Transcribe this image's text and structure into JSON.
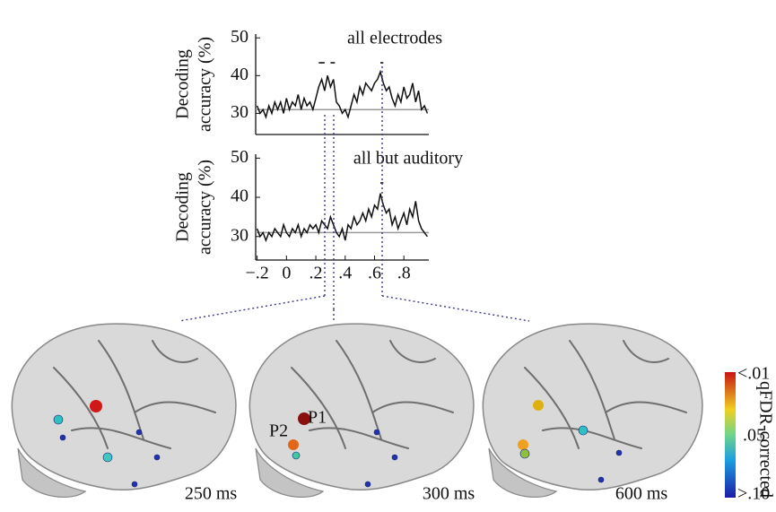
{
  "chart_data": [
    {
      "type": "line",
      "title": "all electrodes",
      "ylabel_lines": [
        "Decoding",
        "accuracy (%)"
      ],
      "x": [
        -0.2,
        -0.18,
        -0.16,
        -0.14,
        -0.12,
        -0.1,
        -0.08,
        -0.06,
        -0.04,
        -0.02,
        0,
        0.02,
        0.04,
        0.06,
        0.08,
        0.1,
        0.12,
        0.14,
        0.16,
        0.18,
        0.2,
        0.22,
        0.24,
        0.26,
        0.28,
        0.3,
        0.32,
        0.34,
        0.36,
        0.38,
        0.4,
        0.42,
        0.44,
        0.46,
        0.48,
        0.5,
        0.52,
        0.54,
        0.56,
        0.58,
        0.6,
        0.62,
        0.64,
        0.66,
        0.68,
        0.7,
        0.72,
        0.74,
        0.76,
        0.78,
        0.8,
        0.82,
        0.84,
        0.86,
        0.88,
        0.9,
        0.92,
        0.94,
        0.96
      ],
      "series": [
        {
          "color": "#111111",
          "values": [
            32,
            30,
            31,
            29,
            32,
            30,
            33,
            31,
            33,
            30,
            34,
            31,
            33,
            32,
            35,
            31,
            34,
            32,
            33,
            31,
            34,
            37,
            39,
            36,
            40,
            37,
            39,
            33,
            32,
            30,
            31,
            29,
            32,
            35,
            33,
            37,
            35,
            38,
            37,
            36,
            38,
            39,
            41,
            38,
            36,
            37,
            34,
            32,
            35,
            33,
            37,
            34,
            35,
            38,
            33,
            36,
            31,
            32,
            30
          ]
        }
      ],
      "reference_line": 31,
      "reference_color": "#9a9a9a",
      "significant_windows": [
        [
          0.22,
          0.26
        ],
        [
          0.3,
          0.33
        ],
        [
          0.64,
          0.66
        ]
      ],
      "xlim": [
        -0.21,
        0.97
      ],
      "ylim": [
        24.4,
        51
      ],
      "yticks": [
        30,
        40,
        50
      ]
    },
    {
      "type": "line",
      "title": "all but auditory",
      "ylabel_lines": [
        "Decoding",
        "accuracy (%)"
      ],
      "x": [
        -0.2,
        -0.18,
        -0.16,
        -0.14,
        -0.12,
        -0.1,
        -0.08,
        -0.06,
        -0.04,
        -0.02,
        0,
        0.02,
        0.04,
        0.06,
        0.08,
        0.1,
        0.12,
        0.14,
        0.16,
        0.18,
        0.2,
        0.22,
        0.24,
        0.26,
        0.28,
        0.3,
        0.32,
        0.34,
        0.36,
        0.38,
        0.4,
        0.42,
        0.44,
        0.46,
        0.48,
        0.5,
        0.52,
        0.54,
        0.56,
        0.58,
        0.6,
        0.62,
        0.64,
        0.66,
        0.68,
        0.7,
        0.72,
        0.74,
        0.76,
        0.78,
        0.8,
        0.82,
        0.84,
        0.86,
        0.88,
        0.9,
        0.92,
        0.94,
        0.96
      ],
      "series": [
        {
          "color": "#111111",
          "values": [
            32,
            30,
            31,
            29,
            31,
            30,
            32,
            31,
            30,
            33,
            31,
            30,
            32,
            31,
            33,
            30,
            32,
            31,
            33,
            32,
            33,
            31,
            34,
            33,
            32,
            35,
            33,
            31,
            30,
            32,
            29,
            33,
            32,
            35,
            33,
            34,
            36,
            34,
            37,
            35,
            38,
            37,
            41,
            38,
            36,
            37,
            33,
            35,
            32,
            34,
            36,
            33,
            37,
            35,
            39,
            34,
            32,
            31,
            30
          ]
        }
      ],
      "reference_line": 31,
      "reference_color": "#9a9a9a",
      "significant_windows": [
        [
          0.64,
          0.66
        ]
      ],
      "xlim": [
        -0.21,
        0.97
      ],
      "ylim": [
        24,
        51
      ],
      "yticks": [
        30,
        40,
        50
      ],
      "xticks": [
        {
          "value": -0.2,
          "label": "−.2"
        },
        0,
        {
          "value": 0.2,
          "label": ".2"
        },
        {
          "value": 0.4,
          "label": ".4"
        },
        {
          "value": 0.6,
          "label": ".6"
        },
        {
          "value": 0.8,
          "label": ".8"
        }
      ]
    }
  ],
  "brains": {
    "time_labels": [
      "250 ms",
      "300 ms",
      "600 ms"
    ],
    "electrode_labels": [
      "P2",
      "P1"
    ]
  },
  "colorbar": {
    "title": "qFDR-corrected",
    "tick_labels": [
      "<.01",
      ".05",
      ">.10"
    ]
  }
}
